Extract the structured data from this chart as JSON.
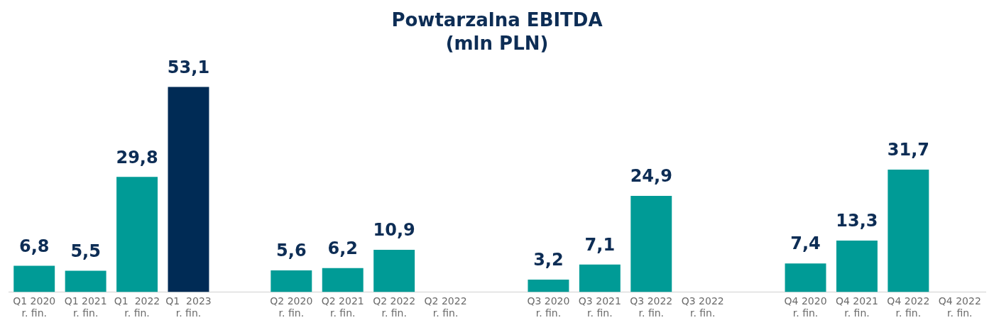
{
  "chart_data": {
    "type": "bar",
    "title": "Powtarzalna EBITDA\n(mln PLN)",
    "categories": [
      "Q1 2020\nr. fin.",
      "Q1 2021\nr. fin.",
      "Q1  2022\nr. fin.",
      "Q1  2023\nr. fin.",
      null,
      "Q2 2020\nr. fin.",
      "Q2 2021\nr. fin.",
      "Q2 2022\nr. fin.",
      "Q2 2022\nr. fin.",
      null,
      "Q3 2020\nr. fin.",
      "Q3 2021\nr. fin.",
      "Q3 2022\nr. fin.",
      "Q3 2022\nr. fin.",
      null,
      "Q4 2020\nr. fin.",
      "Q4 2021\nr. fin.",
      "Q4 2022\nr. fin.",
      "Q4 2022\nr. fin."
    ],
    "values": [
      6.8,
      5.5,
      29.8,
      53.1,
      null,
      5.6,
      6.2,
      10.9,
      null,
      null,
      3.2,
      7.1,
      24.9,
      null,
      null,
      7.4,
      13.3,
      31.7,
      null
    ],
    "colors": [
      "#009b96",
      "#009b96",
      "#009b96",
      "#002b55",
      null,
      "#009b96",
      "#009b96",
      "#009b96",
      null,
      null,
      "#009b96",
      "#009b96",
      "#009b96",
      null,
      null,
      "#009b96",
      "#009b96",
      "#009b96",
      null
    ],
    "value_labels": [
      "6,8",
      "5,5",
      "29,8",
      "53,1",
      null,
      "5,6",
      "6,2",
      "10,9",
      null,
      null,
      "3,2",
      "7,1",
      "24,9",
      null,
      null,
      "7,4",
      "13,3",
      "31,7",
      null
    ],
    "grid": false,
    "legend": false
  }
}
